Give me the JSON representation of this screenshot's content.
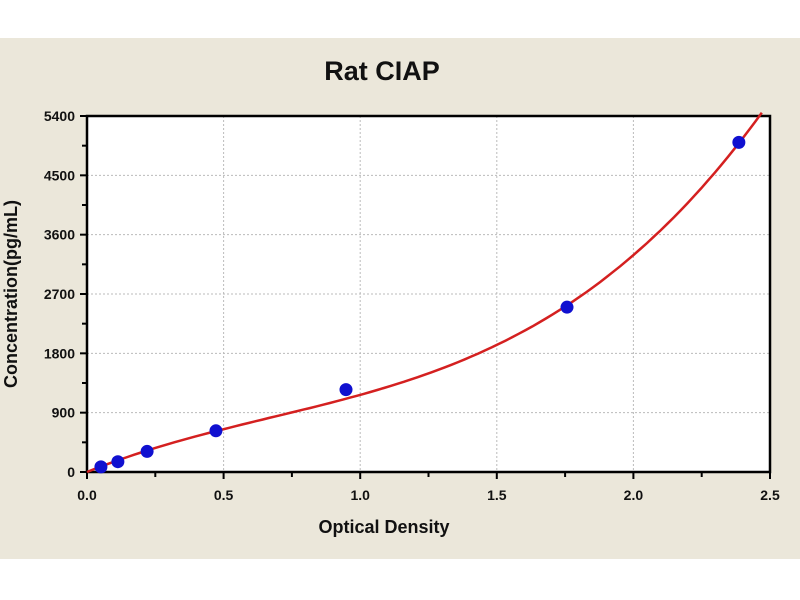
{
  "chart_data": {
    "type": "scatter",
    "title": "Rat CIAP",
    "xlabel": "Optical Density",
    "ylabel": "Concentration(pg/mL)",
    "xlim": [
      0,
      2.5
    ],
    "ylim": [
      0,
      5400
    ],
    "xticks": [
      "0.0",
      "0.5",
      "1.0",
      "1.5",
      "2.0",
      "2.5"
    ],
    "yticks": [
      "0",
      "900",
      "1800",
      "2700",
      "3600",
      "4500",
      "5400"
    ],
    "grid": true,
    "points": [
      {
        "x": 0.051,
        "y": 78
      },
      {
        "x": 0.113,
        "y": 156
      },
      {
        "x": 0.22,
        "y": 312
      },
      {
        "x": 0.472,
        "y": 625
      },
      {
        "x": 0.948,
        "y": 1250
      },
      {
        "x": 1.757,
        "y": 2500
      },
      {
        "x": 2.386,
        "y": 5000
      }
    ],
    "fit_curve": {
      "type": "cubic",
      "coefficients": [
        0,
        1675,
        -995,
        490
      ],
      "x_range": [
        0,
        2.47
      ]
    },
    "colors": {
      "points": "#1010d0",
      "curve": "#d42020",
      "background": "#ebe7da"
    }
  }
}
